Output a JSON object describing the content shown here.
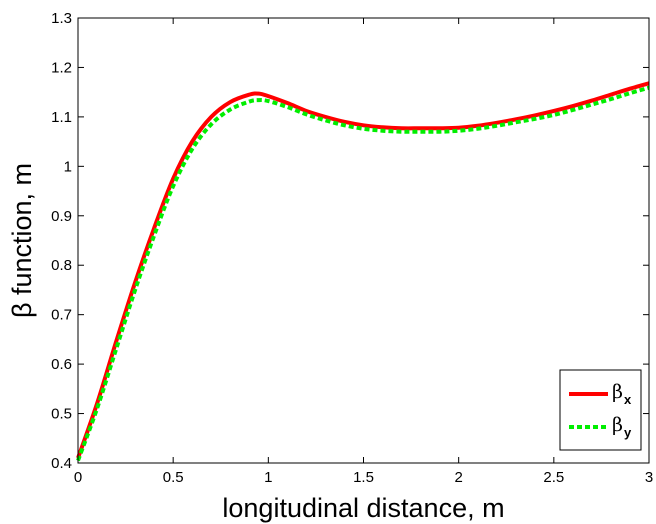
{
  "chart_data": {
    "type": "line",
    "xlabel": "longitudinal distance, m",
    "ylabel": "β function, m",
    "xlim": [
      0,
      3
    ],
    "ylim": [
      0.4,
      1.3
    ],
    "xticks": [
      "0",
      "0.5",
      "1",
      "1.5",
      "2",
      "2.5",
      "3"
    ],
    "yticks": [
      "0.4",
      "0.5",
      "0.6",
      "0.7",
      "0.8",
      "0.9",
      "1",
      "1.1",
      "1.2",
      "1.3"
    ],
    "grid": false,
    "legend_position": "bottom-right",
    "series": [
      {
        "name": "β",
        "subscript": "x",
        "color": "#ff0000",
        "style": "solid",
        "x": [
          0,
          0.1,
          0.2,
          0.3,
          0.4,
          0.5,
          0.6,
          0.7,
          0.8,
          0.9,
          0.95,
          1.0,
          1.1,
          1.2,
          1.3,
          1.4,
          1.5,
          1.6,
          1.7,
          1.8,
          1.9,
          2.0,
          2.1,
          2.2,
          2.3,
          2.4,
          2.5,
          2.6,
          2.7,
          2.8,
          2.9,
          3.0
        ],
        "y": [
          0.41,
          0.52,
          0.645,
          0.765,
          0.875,
          0.975,
          1.05,
          1.1,
          1.13,
          1.145,
          1.147,
          1.142,
          1.128,
          1.112,
          1.1,
          1.09,
          1.083,
          1.079,
          1.077,
          1.077,
          1.077,
          1.078,
          1.082,
          1.088,
          1.095,
          1.103,
          1.112,
          1.122,
          1.133,
          1.145,
          1.157,
          1.168
        ]
      },
      {
        "name": "β",
        "subscript": "y",
        "color": "#00ee00",
        "style": "dashed",
        "x": [
          0,
          0.1,
          0.2,
          0.3,
          0.4,
          0.5,
          0.6,
          0.7,
          0.8,
          0.9,
          0.95,
          1.0,
          1.1,
          1.2,
          1.3,
          1.4,
          1.5,
          1.6,
          1.7,
          1.8,
          1.9,
          2.0,
          2.1,
          2.2,
          2.3,
          2.4,
          2.5,
          2.6,
          2.7,
          2.8,
          2.9,
          3.0
        ],
        "y": [
          0.405,
          0.51,
          0.63,
          0.75,
          0.86,
          0.96,
          1.035,
          1.085,
          1.115,
          1.131,
          1.134,
          1.132,
          1.12,
          1.105,
          1.093,
          1.083,
          1.076,
          1.072,
          1.07,
          1.07,
          1.07,
          1.072,
          1.076,
          1.082,
          1.089,
          1.096,
          1.104,
          1.114,
          1.125,
          1.136,
          1.148,
          1.159
        ]
      }
    ]
  }
}
